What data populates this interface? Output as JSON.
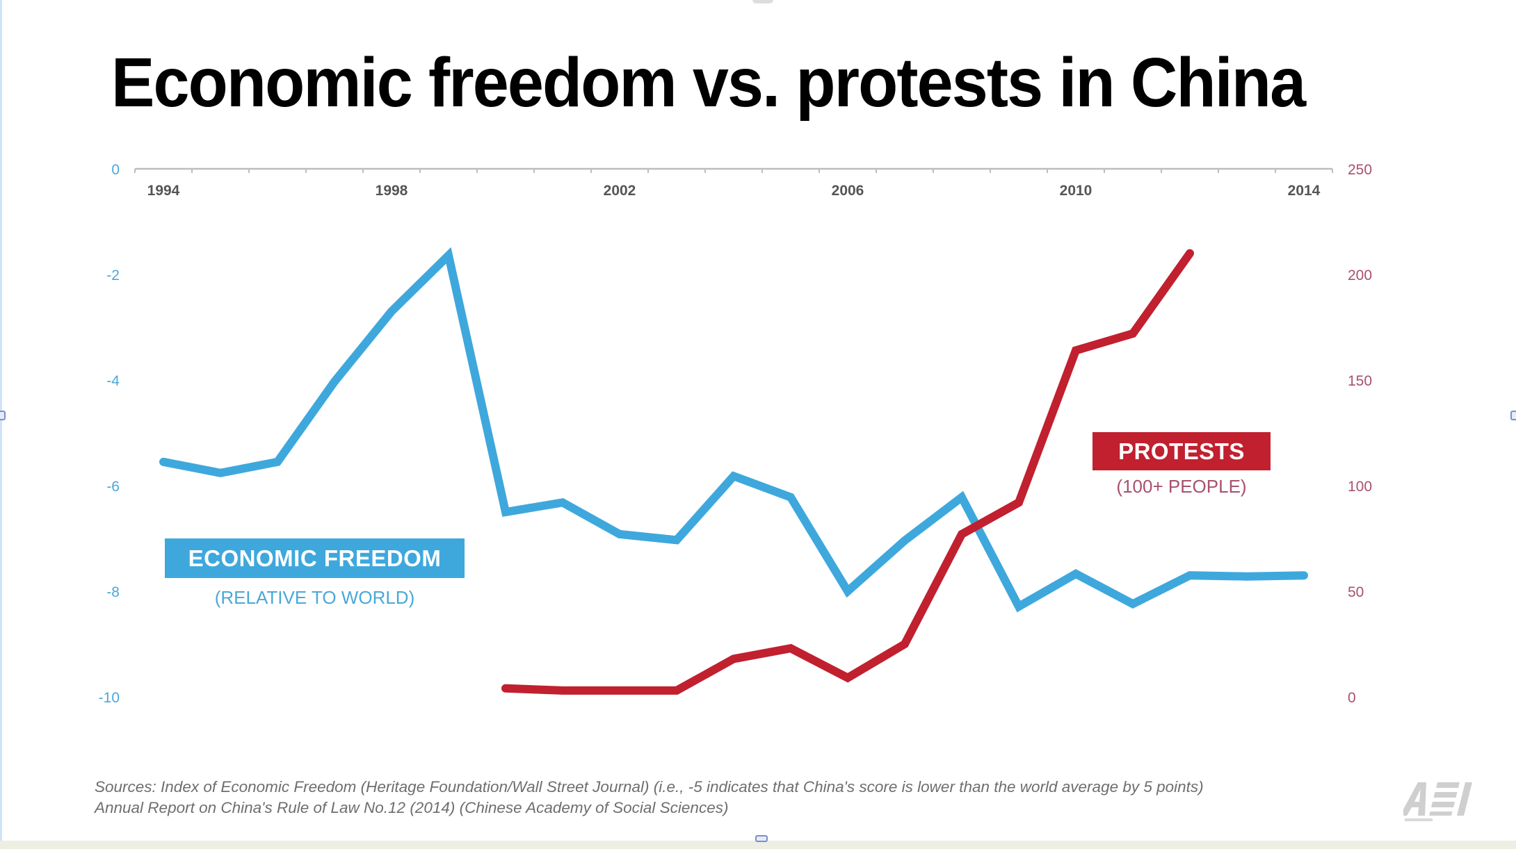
{
  "slide": {
    "title": "Economic freedom vs. protests in China",
    "legend": {
      "economic_freedom": {
        "label": "ECONOMIC FREEDOM",
        "sublabel": "(RELATIVE TO WORLD)"
      },
      "protests": {
        "label": "PROTESTS",
        "sublabel": "(100+ PEOPLE)"
      }
    },
    "sources": [
      "Sources: Index of Economic Freedom (Heritage Foundation/Wall Street Journal) (i.e., -5 indicates that China's score is lower than the world average by 5 points)",
      "Annual Report on China's Rule of Law No.12 (2014) (Chinese Academy of Social Sciences)"
    ],
    "logo_text": "AEI",
    "colors": {
      "economic_freedom": "#3ea8dd",
      "protests": "#c1202f",
      "left_axis_text": "#4aa8d8",
      "right_axis_text": "#a8506e"
    }
  },
  "chart_data": {
    "type": "line",
    "title": "Economic freedom vs. protests in China",
    "xlabel": "",
    "x_ticks": [
      "1994",
      "1998",
      "2002",
      "2006",
      "2010",
      "2014"
    ],
    "x_range": [
      1993.5,
      2014.5
    ],
    "y_left": {
      "label": "Economic freedom (relative to world)",
      "range": [
        -10,
        0
      ],
      "ticks": [
        "0",
        "-2",
        "-4",
        "-6",
        "-8",
        "-10"
      ]
    },
    "y_right": {
      "label": "Protests (100+ people)",
      "range": [
        0,
        250
      ],
      "ticks": [
        "250",
        "200",
        "150",
        "100",
        "50",
        "0"
      ]
    },
    "grid": false,
    "legend_placement": "inline-labels",
    "series": [
      {
        "name": "ECONOMIC FREEDOM",
        "axis": "left",
        "x": [
          1994,
          1995,
          1996,
          1997,
          1998,
          1999,
          2000,
          2001,
          2002,
          2003,
          2004,
          2005,
          2006,
          2007,
          2008,
          2009,
          2010,
          2011,
          2012,
          2013,
          2014
        ],
        "values": [
          -5.55,
          -5.76,
          -5.55,
          -4.03,
          -2.7,
          -1.64,
          -6.5,
          -6.32,
          -6.92,
          -7.03,
          -5.82,
          -6.22,
          -8.0,
          -7.04,
          -6.22,
          -8.29,
          -7.67,
          -8.24,
          -7.7,
          -7.72,
          -7.7
        ]
      },
      {
        "name": "PROTESTS",
        "axis": "right",
        "x": [
          2000,
          2001,
          2002,
          2003,
          2004,
          2005,
          2006,
          2007,
          2008,
          2009,
          2010,
          2011,
          2012
        ],
        "values": [
          4,
          3,
          3,
          3,
          18,
          23,
          9,
          25,
          77,
          92,
          164,
          172,
          210
        ]
      }
    ]
  }
}
